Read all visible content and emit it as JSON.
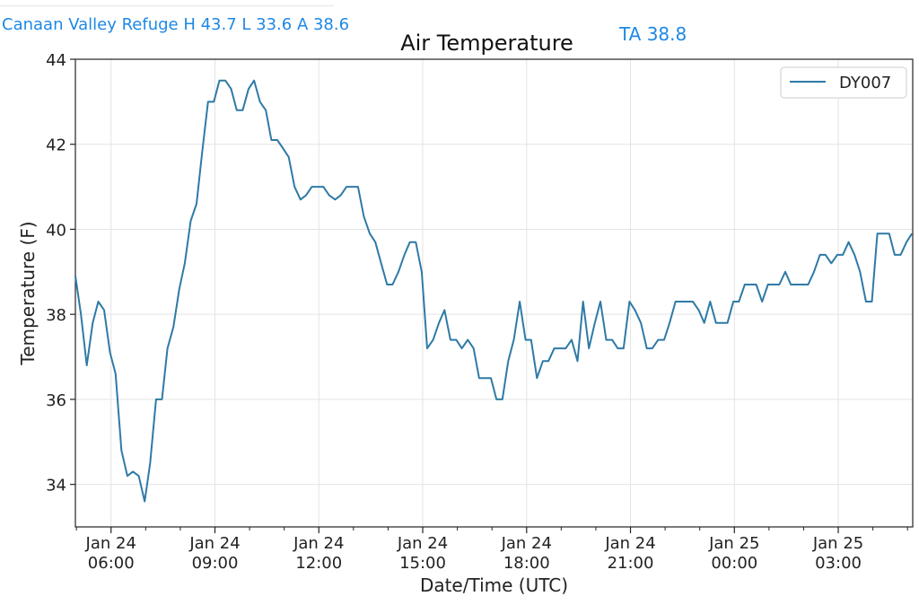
{
  "header": {
    "station_summary": "Canaan Valley Refuge H 43.7 L 33.6 A 38.6",
    "current_reading": "TA 38.8"
  },
  "chart_data": {
    "type": "line",
    "title": "Air Temperature",
    "xlabel": "Date/Time (UTC)",
    "ylabel": "Temperature (F)",
    "ylim": [
      33.0,
      44.0
    ],
    "yticks": [
      34,
      36,
      38,
      40,
      42,
      44
    ],
    "xlim": [
      4.97,
      29.15
    ],
    "xticks": [
      {
        "value": 6,
        "line1": "Jan 24",
        "line2": "06:00"
      },
      {
        "value": 9,
        "line1": "Jan 24",
        "line2": "09:00"
      },
      {
        "value": 12,
        "line1": "Jan 24",
        "line2": "12:00"
      },
      {
        "value": 15,
        "line1": "Jan 24",
        "line2": "15:00"
      },
      {
        "value": 18,
        "line1": "Jan 24",
        "line2": "18:00"
      },
      {
        "value": 21,
        "line1": "Jan 24",
        "line2": "21:00"
      },
      {
        "value": 24,
        "line1": "Jan 25",
        "line2": "00:00"
      },
      {
        "value": 27,
        "line1": "Jan 25",
        "line2": "03:00"
      }
    ],
    "x_unit": "hours from Jan 24 00:00 UTC",
    "grid": true,
    "legend": "top-right",
    "series": [
      {
        "name": "DY007",
        "color": "#2e7aa6",
        "x": [
          4.97,
          5.13,
          5.3,
          5.47,
          5.63,
          5.8,
          5.97,
          6.13,
          6.3,
          6.47,
          6.63,
          6.8,
          6.97,
          7.13,
          7.3,
          7.47,
          7.63,
          7.8,
          7.97,
          8.13,
          8.3,
          8.47,
          8.63,
          8.8,
          8.97,
          9.13,
          9.3,
          9.47,
          9.63,
          9.8,
          9.97,
          10.13,
          10.3,
          10.47,
          10.63,
          10.8,
          10.97,
          11.13,
          11.3,
          11.47,
          11.63,
          11.8,
          11.97,
          12.13,
          12.3,
          12.47,
          12.63,
          12.8,
          12.97,
          13.13,
          13.3,
          13.47,
          13.63,
          13.8,
          13.97,
          14.13,
          14.3,
          14.47,
          14.63,
          14.8,
          14.97,
          15.13,
          15.3,
          15.47,
          15.63,
          15.8,
          15.97,
          16.13,
          16.3,
          16.47,
          16.63,
          16.8,
          16.97,
          17.13,
          17.3,
          17.47,
          17.63,
          17.8,
          17.97,
          18.13,
          18.3,
          18.47,
          18.63,
          18.8,
          18.97,
          19.13,
          19.3,
          19.47,
          19.63,
          19.8,
          19.97,
          20.13,
          20.3,
          20.47,
          20.63,
          20.8,
          20.97,
          21.13,
          21.3,
          21.47,
          21.63,
          21.8,
          21.97,
          22.13,
          22.3,
          22.47,
          22.63,
          22.8,
          22.97,
          23.13,
          23.3,
          23.47,
          23.63,
          23.8,
          23.97,
          24.13,
          24.3,
          24.47,
          24.63,
          24.8,
          24.97,
          25.13,
          25.3,
          25.47,
          25.63,
          25.8,
          25.97,
          26.13,
          26.3,
          26.47,
          26.63,
          26.8,
          26.97,
          27.13,
          27.3,
          27.47,
          27.63,
          27.8,
          27.97,
          28.13,
          28.3,
          28.47,
          28.63,
          28.8,
          28.97,
          29.13
        ],
        "values": [
          38.9,
          38.0,
          36.8,
          37.8,
          38.3,
          38.1,
          37.1,
          36.6,
          34.8,
          34.2,
          34.3,
          34.2,
          33.6,
          34.5,
          36.0,
          36.0,
          37.2,
          37.7,
          38.6,
          39.2,
          40.2,
          40.6,
          41.8,
          43.0,
          43.0,
          43.5,
          43.5,
          43.3,
          42.8,
          42.8,
          43.3,
          43.5,
          43.0,
          42.8,
          42.1,
          42.1,
          41.9,
          41.7,
          41.0,
          40.7,
          40.8,
          41.0,
          41.0,
          41.0,
          40.8,
          40.7,
          40.8,
          41.0,
          41.0,
          41.0,
          40.3,
          39.9,
          39.7,
          39.2,
          38.7,
          38.7,
          39.0,
          39.4,
          39.7,
          39.7,
          39.0,
          37.2,
          37.4,
          37.8,
          38.1,
          37.4,
          37.4,
          37.2,
          37.4,
          37.2,
          36.5,
          36.5,
          36.5,
          36.0,
          36.0,
          36.9,
          37.4,
          38.3,
          37.4,
          37.4,
          36.5,
          36.9,
          36.9,
          37.2,
          37.2,
          37.2,
          37.4,
          36.9,
          38.3,
          37.2,
          37.8,
          38.3,
          37.4,
          37.4,
          37.2,
          37.2,
          38.3,
          38.1,
          37.8,
          37.2,
          37.2,
          37.4,
          37.4,
          37.8,
          38.3,
          38.3,
          38.3,
          38.3,
          38.1,
          37.8,
          38.3,
          37.8,
          37.8,
          37.8,
          38.3,
          38.3,
          38.7,
          38.7,
          38.7,
          38.3,
          38.7,
          38.7,
          38.7,
          39.0,
          38.7,
          38.7,
          38.7,
          38.7,
          39.0,
          39.4,
          39.4,
          39.2,
          39.4,
          39.4,
          39.7,
          39.4,
          39.0,
          38.3,
          38.3,
          39.9,
          39.9,
          39.9,
          39.4,
          39.4,
          39.7,
          39.9
        ]
      }
    ]
  }
}
